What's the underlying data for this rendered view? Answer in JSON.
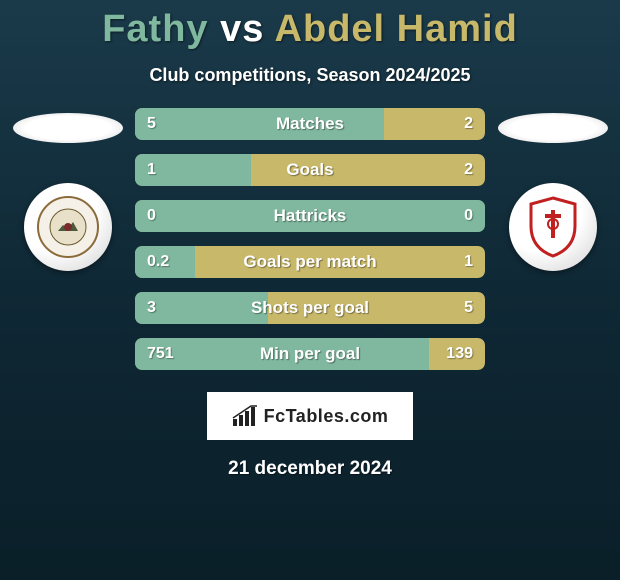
{
  "title": {
    "player1": "Fathy",
    "vs": "vs",
    "player2": "Abdel Hamid"
  },
  "subtitle": "Club competitions, Season 2024/2025",
  "colors": {
    "player1": "#7fb89e",
    "player2": "#c8b86a",
    "bar_bg": "#c8b86a",
    "bar_left": "#7fb89e"
  },
  "bars": [
    {
      "label": "Matches",
      "left_value": "5",
      "right_value": "2",
      "left_pct": 71
    },
    {
      "label": "Goals",
      "left_value": "1",
      "right_value": "2",
      "left_pct": 33
    },
    {
      "label": "Hattricks",
      "left_value": "0",
      "right_value": "0",
      "left_pct": 100
    },
    {
      "label": "Goals per match",
      "left_value": "0.2",
      "right_value": "1",
      "left_pct": 17
    },
    {
      "label": "Shots per goal",
      "left_value": "3",
      "right_value": "5",
      "left_pct": 38
    },
    {
      "label": "Min per goal",
      "left_value": "751",
      "right_value": "139",
      "left_pct": 84
    }
  ],
  "branding": "FcTables.com",
  "date": "21 december 2024"
}
